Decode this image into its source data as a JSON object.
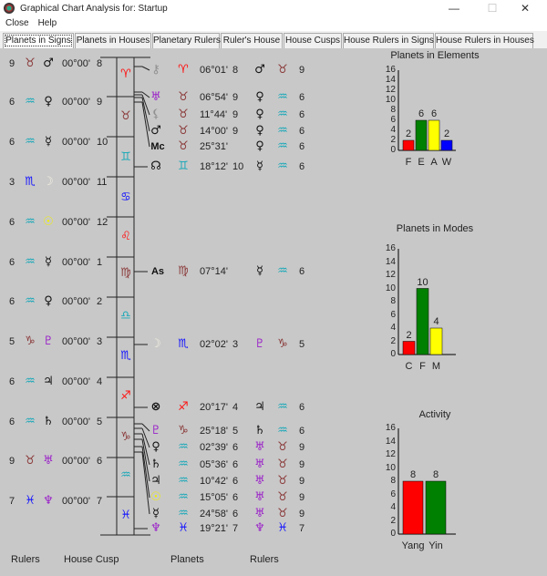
{
  "window": {
    "title": "Graphical Chart Analysis for:  Startup",
    "minimize": "—",
    "maximize": "☐",
    "close": "✕"
  },
  "menu": [
    "Close",
    "Help"
  ],
  "tabs": [
    "Planets in Signs",
    "Planets in Houses",
    "Planetary Rulers",
    "Ruler's House",
    "House Cusps",
    "House Rulers in Signs",
    "House Rulers in Houses"
  ],
  "active_tab": "Planets in Signs",
  "colors": {
    "red": "#ff1010",
    "brown": "#8b3a3a",
    "teal": "#18a8b8",
    "blue": "#1010ff",
    "purple": "#9a20c8",
    "black": "#111111",
    "yellow": "#f0f000",
    "moon": "#f4f0e0",
    "gray": "#909090"
  },
  "signs_column": [
    {
      "glyph": "♈",
      "color": "red"
    },
    {
      "glyph": "♉",
      "color": "brown"
    },
    {
      "glyph": "♊",
      "color": "teal"
    },
    {
      "glyph": "♋",
      "color": "blue"
    },
    {
      "glyph": "♌",
      "color": "red"
    },
    {
      "glyph": "♍",
      "color": "brown"
    },
    {
      "glyph": "♎",
      "color": "teal"
    },
    {
      "glyph": "♏",
      "color": "blue"
    },
    {
      "glyph": "♐",
      "color": "red"
    },
    {
      "glyph": "♑",
      "color": "brown"
    },
    {
      "glyph": "♒",
      "color": "teal"
    },
    {
      "glyph": "♓",
      "color": "blue"
    }
  ],
  "house_cusps": [
    {
      "ruler_house": "9",
      "sign": "♉",
      "sign_color": "brown",
      "ruler": "♂",
      "ruler_color": "black",
      "degree": "00°00'",
      "house": "8"
    },
    {
      "ruler_house": "6",
      "sign": "♒",
      "sign_color": "teal",
      "ruler": "♀",
      "ruler_color": "black",
      "degree": "00°00'",
      "house": "9"
    },
    {
      "ruler_house": "6",
      "sign": "♒",
      "sign_color": "teal",
      "ruler": "☿",
      "ruler_color": "black",
      "degree": "00°00'",
      "house": "10"
    },
    {
      "ruler_house": "3",
      "sign": "♏",
      "sign_color": "blue",
      "ruler": "☽",
      "ruler_color": "moon",
      "degree": "00°00'",
      "house": "11"
    },
    {
      "ruler_house": "6",
      "sign": "♒",
      "sign_color": "teal",
      "ruler": "☉",
      "ruler_color": "yellow",
      "degree": "00°00'",
      "house": "12"
    },
    {
      "ruler_house": "6",
      "sign": "♒",
      "sign_color": "teal",
      "ruler": "☿",
      "ruler_color": "black",
      "degree": "00°00'",
      "house": "1"
    },
    {
      "ruler_house": "6",
      "sign": "♒",
      "sign_color": "teal",
      "ruler": "♀",
      "ruler_color": "black",
      "degree": "00°00'",
      "house": "2"
    },
    {
      "ruler_house": "5",
      "sign": "♑",
      "sign_color": "brown",
      "ruler": "♇",
      "ruler_color": "purple",
      "degree": "00°00'",
      "house": "3"
    },
    {
      "ruler_house": "6",
      "sign": "♒",
      "sign_color": "teal",
      "ruler": "♃",
      "ruler_color": "black",
      "degree": "00°00'",
      "house": "4"
    },
    {
      "ruler_house": "6",
      "sign": "♒",
      "sign_color": "teal",
      "ruler": "♄",
      "ruler_color": "black",
      "degree": "00°00'",
      "house": "5"
    },
    {
      "ruler_house": "9",
      "sign": "♉",
      "sign_color": "brown",
      "ruler": "♅",
      "ruler_color": "purple",
      "degree": "00°00'",
      "house": "6"
    },
    {
      "ruler_house": "7",
      "sign": "♓",
      "sign_color": "blue",
      "ruler": "♆",
      "ruler_color": "purple",
      "degree": "00°00'",
      "house": "7"
    }
  ],
  "planets": [
    {
      "planet": "⚷",
      "planet_color": "gray",
      "sign": "♈",
      "sign_color": "red",
      "degree": "06°01'",
      "house": "8",
      "ruler": "♂",
      "ruler_color": "black",
      "ruler_sign": "♉",
      "ruler_sign_color": "brown",
      "ruler_house": "9"
    },
    {
      "planet": "♅",
      "planet_color": "purple",
      "sign": "♉",
      "sign_color": "brown",
      "degree": "06°54'",
      "house": "9",
      "ruler": "♀",
      "ruler_color": "black",
      "ruler_sign": "♒",
      "ruler_sign_color": "teal",
      "ruler_house": "6"
    },
    {
      "planet": "⚸",
      "planet_color": "gray",
      "sign": "♉",
      "sign_color": "brown",
      "degree": "11°44'",
      "house": "9",
      "ruler": "♀",
      "ruler_color": "black",
      "ruler_sign": "♒",
      "ruler_sign_color": "teal",
      "ruler_house": "6"
    },
    {
      "planet": "♂",
      "planet_color": "black",
      "sign": "♉",
      "sign_color": "brown",
      "degree": "14°00'",
      "house": "9",
      "ruler": "♀",
      "ruler_color": "black",
      "ruler_sign": "♒",
      "ruler_sign_color": "teal",
      "ruler_house": "6"
    },
    {
      "planet": "Mc",
      "planet_color": "black",
      "sign": "♉",
      "sign_color": "brown",
      "degree": "25°31'",
      "house": "",
      "ruler": "♀",
      "ruler_color": "black",
      "ruler_sign": "♒",
      "ruler_sign_color": "teal",
      "ruler_house": "6"
    },
    {
      "planet": "☊",
      "planet_color": "black",
      "sign": "♊",
      "sign_color": "teal",
      "degree": "18°12'",
      "house": "10",
      "ruler": "☿",
      "ruler_color": "black",
      "ruler_sign": "♒",
      "ruler_sign_color": "teal",
      "ruler_house": "6"
    },
    {
      "planet": "As",
      "planet_color": "black",
      "sign": "♍",
      "sign_color": "brown",
      "degree": "07°14'",
      "house": "",
      "ruler": "☿",
      "ruler_color": "black",
      "ruler_sign": "♒",
      "ruler_sign_color": "teal",
      "ruler_house": "6"
    },
    {
      "planet": "☽",
      "planet_color": "moon",
      "sign": "♏",
      "sign_color": "blue",
      "degree": "02°02'",
      "house": "3",
      "ruler": "♇",
      "ruler_color": "purple",
      "ruler_sign": "♑",
      "ruler_sign_color": "brown",
      "ruler_house": "5"
    },
    {
      "planet": "⊗",
      "planet_color": "black",
      "sign": "♐",
      "sign_color": "red",
      "degree": "20°17'",
      "house": "4",
      "ruler": "♃",
      "ruler_color": "black",
      "ruler_sign": "♒",
      "ruler_sign_color": "teal",
      "ruler_house": "6"
    },
    {
      "planet": "♇",
      "planet_color": "purple",
      "sign": "♑",
      "sign_color": "brown",
      "degree": "25°18'",
      "house": "5",
      "ruler": "♄",
      "ruler_color": "black",
      "ruler_sign": "♒",
      "ruler_sign_color": "teal",
      "ruler_house": "6"
    },
    {
      "planet": "♀",
      "planet_color": "black",
      "sign": "♒",
      "sign_color": "teal",
      "degree": "02°39'",
      "house": "6",
      "ruler": "♅",
      "ruler_color": "purple",
      "ruler_sign": "♉",
      "ruler_sign_color": "brown",
      "ruler_house": "9"
    },
    {
      "planet": "♄",
      "planet_color": "black",
      "sign": "♒",
      "sign_color": "teal",
      "degree": "05°36'",
      "house": "6",
      "ruler": "♅",
      "ruler_color": "purple",
      "ruler_sign": "♉",
      "ruler_sign_color": "brown",
      "ruler_house": "9"
    },
    {
      "planet": "♃",
      "planet_color": "black",
      "sign": "♒",
      "sign_color": "teal",
      "degree": "10°42'",
      "house": "6",
      "ruler": "♅",
      "ruler_color": "purple",
      "ruler_sign": "♉",
      "ruler_sign_color": "brown",
      "ruler_house": "9"
    },
    {
      "planet": "☉",
      "planet_color": "yellow",
      "sign": "♒",
      "sign_color": "teal",
      "degree": "15°05'",
      "house": "6",
      "ruler": "♅",
      "ruler_color": "purple",
      "ruler_sign": "♉",
      "ruler_sign_color": "brown",
      "ruler_house": "9"
    },
    {
      "planet": "☿",
      "planet_color": "black",
      "sign": "♒",
      "sign_color": "teal",
      "degree": "24°58'",
      "house": "6",
      "ruler": "♅",
      "ruler_color": "purple",
      "ruler_sign": "♉",
      "ruler_sign_color": "brown",
      "ruler_house": "9"
    },
    {
      "planet": "♆",
      "planet_color": "purple",
      "sign": "♓",
      "sign_color": "blue",
      "degree": "19°21'",
      "house": "7",
      "ruler": "♆",
      "ruler_color": "purple",
      "ruler_sign": "♓",
      "ruler_sign_color": "blue",
      "ruler_house": "7"
    }
  ],
  "footer": {
    "rulers_left": "Rulers",
    "house_cusp": "House Cusp",
    "planets": "Planets",
    "rulers_right": "Rulers"
  },
  "chart_data": [
    {
      "type": "bar",
      "title": "Planets in Elements",
      "categories": [
        "F",
        "E",
        "A",
        "W"
      ],
      "values": [
        2,
        6,
        6,
        2
      ],
      "colors": [
        "#ff0000",
        "#008000",
        "#ffff00",
        "#0000ff"
      ],
      "ylim": [
        0,
        16
      ],
      "yticks": [
        0,
        2,
        4,
        6,
        8,
        10,
        12,
        14,
        16
      ]
    },
    {
      "type": "bar",
      "title": "Planets in Modes",
      "categories": [
        "C",
        "F",
        "M"
      ],
      "values": [
        2,
        10,
        4
      ],
      "colors": [
        "#ff0000",
        "#008000",
        "#ffff00"
      ],
      "ylim": [
        0,
        16
      ],
      "yticks": [
        0,
        2,
        4,
        6,
        8,
        10,
        12,
        14,
        16
      ]
    },
    {
      "type": "bar",
      "title": "Activity",
      "categories": [
        "Yang",
        "Yin"
      ],
      "values": [
        8,
        8
      ],
      "colors": [
        "#ff0000",
        "#008000"
      ],
      "ylim": [
        0,
        16
      ],
      "yticks": [
        0,
        2,
        4,
        6,
        8,
        10,
        12,
        14,
        16
      ]
    }
  ]
}
